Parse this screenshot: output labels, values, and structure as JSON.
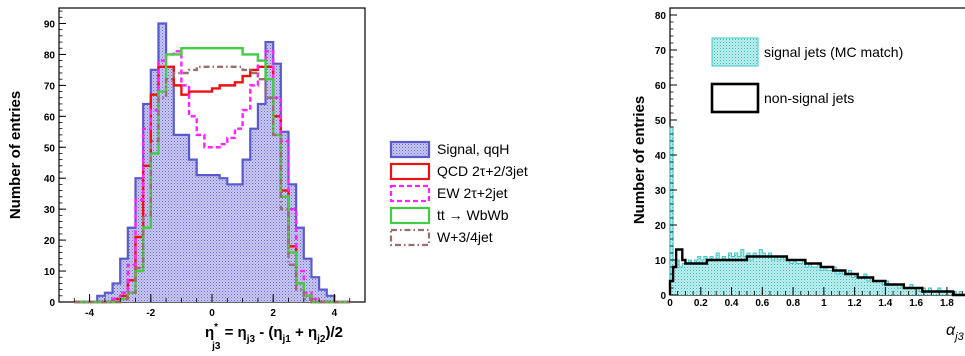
{
  "chart_data": [
    {
      "type": "histogram",
      "ylabel": "Number of entries",
      "xlabel": {
        "main": "η",
        "sup": "*",
        "sub": "j3",
        "rest": " = η",
        "sub2": "j3",
        "rest2": " - (η",
        "sub3": "j1",
        "rest3": " + η",
        "sub4": "j2",
        "rest4": ")/2"
      },
      "xlim": [
        -5,
        5
      ],
      "ylim": [
        0,
        95
      ],
      "xticks": [
        -4,
        -2,
        0,
        2,
        4
      ],
      "yticks": [
        0,
        10,
        20,
        30,
        40,
        50,
        60,
        70,
        80,
        90
      ],
      "bin_width": 0.25,
      "bin_start": -4.5,
      "legend_position": "right",
      "series": [
        {
          "name": "Signal, qqH",
          "color": "#5a5ad0",
          "fill": "#b8b8ee",
          "style": "filled",
          "values": [
            0,
            0,
            0,
            2,
            3,
            6,
            14,
            24,
            40,
            64,
            75,
            90,
            76,
            54,
            54,
            46,
            41,
            41,
            41,
            40,
            38,
            38,
            46,
            56,
            64,
            84,
            77,
            55,
            38,
            24,
            14,
            8,
            4,
            2,
            0,
            0
          ]
        },
        {
          "name": "QCD 2τ+2/3jet",
          "color": "#ee1111",
          "style": "solid",
          "values": [
            0,
            0,
            0,
            0,
            0,
            1,
            2,
            7,
            21,
            44,
            67,
            76,
            76,
            70,
            67,
            68,
            68,
            68,
            69,
            70,
            70,
            71,
            73,
            75,
            76,
            76,
            60,
            36,
            18,
            6,
            2,
            0,
            0,
            0,
            0,
            0
          ]
        },
        {
          "name": "EW 2τ+2jet",
          "color": "#ff22ff",
          "style": "dashed",
          "values": [
            0,
            0,
            0,
            0,
            0,
            1,
            3,
            12,
            33,
            56,
            62,
            78,
            80,
            81,
            70,
            60,
            54,
            50,
            50,
            51,
            53,
            56,
            62,
            70,
            78,
            81,
            66,
            52,
            30,
            10,
            3,
            1,
            0,
            0,
            0,
            0
          ]
        },
        {
          "name": "tt → WbWb",
          "color": "#44cc44",
          "style": "solid",
          "values": [
            0,
            0,
            0,
            0,
            0,
            0,
            1,
            3,
            10,
            24,
            48,
            68,
            80,
            80,
            82,
            82,
            82,
            82,
            82,
            82,
            82,
            82,
            80,
            80,
            78,
            72,
            54,
            34,
            16,
            6,
            2,
            0,
            0,
            0,
            0,
            0
          ]
        },
        {
          "name": "W+3/4jet",
          "color": "#9b6d6d",
          "style": "dashdot",
          "values": [
            0,
            0,
            0,
            0,
            0,
            0,
            1,
            3,
            11,
            28,
            52,
            66,
            72,
            74,
            74,
            75,
            76,
            76,
            76,
            76,
            76,
            76,
            75,
            74,
            72,
            66,
            54,
            30,
            12,
            4,
            1,
            0,
            0,
            0,
            0,
            0
          ]
        }
      ]
    },
    {
      "type": "histogram",
      "ylabel": "Number of entries",
      "xlabel": {
        "main": "α",
        "sub": "j3"
      },
      "xlim": [
        0,
        1.95
      ],
      "ylim": [
        0,
        82
      ],
      "xticks": [
        0,
        0.2,
        0.4,
        0.6,
        0.8,
        1,
        1.2,
        1.4,
        1.6,
        1.8
      ],
      "xtick_labels": [
        "0",
        "0.2",
        "0.4",
        "0.6",
        "0.8",
        "1",
        "1.2",
        "1.4",
        "1.6",
        "1.8"
      ],
      "yticks": [
        0,
        10,
        20,
        30,
        40,
        50,
        60,
        70,
        80
      ],
      "bin_width": 0.02,
      "legend_position": "top-right",
      "series": [
        {
          "name": "signal jets (MC match)",
          "color": "#3fc8c8",
          "fill": "#b6ecec",
          "style": "filled",
          "values": [
            48,
            10,
            10,
            8,
            9,
            9,
            10,
            9,
            10,
            11,
            10,
            11,
            10,
            11,
            10,
            12,
            10,
            11,
            10,
            12,
            11,
            12,
            11,
            13,
            11,
            12,
            10,
            12,
            11,
            13,
            12,
            11,
            12,
            10,
            11,
            10,
            11,
            10,
            10,
            9,
            10,
            9,
            9,
            10,
            8,
            9,
            8,
            8,
            9,
            7,
            8,
            7,
            7,
            8,
            6,
            7,
            6,
            6,
            7,
            5,
            6,
            5,
            5,
            6,
            4,
            5,
            4,
            4,
            4,
            3,
            4,
            3,
            3,
            3,
            2,
            3,
            2,
            2,
            3,
            2,
            2,
            1,
            2,
            1,
            2,
            1,
            1,
            2,
            1,
            1,
            1,
            1,
            1,
            0,
            1,
            0,
            0
          ]
        },
        {
          "name": "non-signal jets",
          "color": "#000000",
          "style": "solid",
          "values": [
            4,
            8,
            13,
            13,
            10,
            9,
            9,
            9,
            9,
            9,
            9,
            9,
            10,
            10,
            10,
            10,
            10,
            10,
            10,
            10,
            10,
            10,
            10,
            10,
            10,
            11,
            11,
            11,
            11,
            11,
            11,
            11,
            11,
            11,
            11,
            11,
            11,
            11,
            10,
            10,
            10,
            10,
            10,
            10,
            9,
            9,
            9,
            9,
            9,
            8,
            8,
            8,
            8,
            7,
            7,
            7,
            7,
            6,
            6,
            6,
            6,
            5,
            5,
            5,
            5,
            5,
            4,
            4,
            4,
            4,
            3,
            3,
            3,
            3,
            3,
            3,
            2,
            2,
            2,
            2,
            2,
            2,
            1,
            1,
            1,
            1,
            1,
            1,
            1,
            1,
            1,
            1,
            0,
            0,
            0,
            0,
            0
          ]
        }
      ]
    }
  ]
}
